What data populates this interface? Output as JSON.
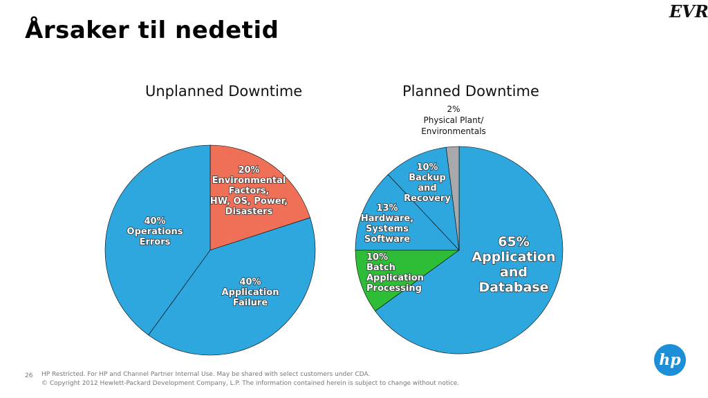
{
  "slide": {
    "title": "Årsaker til nedetid",
    "logo_text": "EVRY",
    "page_number": "26",
    "footer_line1": "HP Restricted. For HP and Channel Partner Internal Use. May be shared with select customers under CDA.",
    "footer_line2": "© Copyright 2012 Hewlett-Packard Development Company, L.P.  The information contained herein is subject to change without notice.",
    "hp_logo_text": "hp"
  },
  "chart_data": [
    {
      "type": "pie",
      "title": "Unplanned Downtime",
      "slices": [
        {
          "lines": [
            "20%",
            "Environmental",
            "Factors,",
            "HW, OS, Power,",
            "Disasters"
          ],
          "value": 20,
          "color": "#f07057"
        },
        {
          "lines": [
            "40%",
            "Application",
            "Failure"
          ],
          "value": 40,
          "color": "#2ea6de"
        },
        {
          "lines": [
            "40%",
            "Operations",
            "Errors"
          ],
          "value": 40,
          "color": "#2ea6de"
        }
      ]
    },
    {
      "type": "pie",
      "title": "Planned Downtime",
      "slices": [
        {
          "lines": [
            "65%",
            "Application",
            "and",
            "Database"
          ],
          "value": 65,
          "color": "#2ea6de"
        },
        {
          "lines": [
            "10%",
            "Batch",
            "Application",
            "Processing"
          ],
          "value": 10,
          "color": "#2dbd36"
        },
        {
          "lines": [
            "13%",
            "Hardware,",
            "Systems",
            "Software"
          ],
          "value": 13,
          "color": "#2ea6de"
        },
        {
          "lines": [
            "10%",
            "Backup",
            "and",
            "Recovery"
          ],
          "value": 10,
          "color": "#2ea6de"
        },
        {
          "lines": [
            "2%",
            "Physical Plant/",
            "Environmentals"
          ],
          "value": 2,
          "color": "#a7a9ac"
        }
      ]
    }
  ]
}
